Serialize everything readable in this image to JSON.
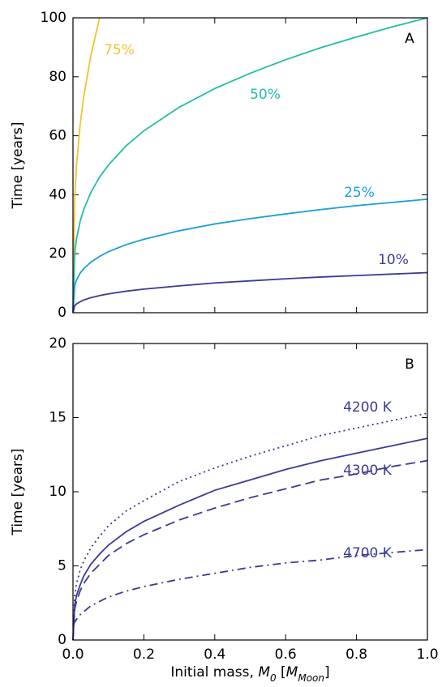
{
  "chart_data": [
    {
      "type": "line",
      "annotation": "A",
      "x": [
        0,
        0.005,
        0.01,
        0.02,
        0.03,
        0.05,
        0.075,
        0.1,
        0.15,
        0.2,
        0.3,
        0.4,
        0.5,
        0.6,
        0.7,
        0.8,
        0.9,
        1.0
      ],
      "series": [
        {
          "name": "75%",
          "color": "#f2c230",
          "linestyle": "solid",
          "values": [
            0,
            39.5,
            50,
            63.5,
            73,
            87,
            100,
            null,
            null,
            null,
            null,
            null,
            null,
            null,
            null,
            null,
            null,
            null
          ]
        },
        {
          "name": "50%",
          "color": "#1fbfa6",
          "linestyle": "solid",
          "values": [
            0,
            20.4,
            25.1,
            30.9,
            34.9,
            40.7,
            46.0,
            50.1,
            56.6,
            61.7,
            69.7,
            76.0,
            81.2,
            85.8,
            89.9,
            93.5,
            96.9,
            100
          ]
        },
        {
          "name": "25%",
          "color": "#1a9fd8",
          "linestyle": "solid",
          "values": [
            0,
            9.2,
            11.1,
            13.4,
            14.9,
            17.1,
            19.1,
            20.7,
            23.1,
            24.9,
            27.8,
            30.1,
            31.9,
            33.5,
            35.0,
            36.3,
            37.4,
            38.5
          ]
        },
        {
          "name": "10%",
          "color": "#3b3b96",
          "linestyle": "solid",
          "values": [
            0,
            2.4,
            3.0,
            3.7,
            4.3,
            5.1,
            5.8,
            6.4,
            7.3,
            8.0,
            9.1,
            10.1,
            10.8,
            11.5,
            12.1,
            12.6,
            13.1,
            13.6
          ]
        }
      ],
      "ylabel": "Time [years]",
      "xlim": [
        0,
        1.0
      ],
      "xticks": [
        0,
        0.2,
        0.4,
        0.6,
        0.8,
        1.0
      ],
      "ylim": [
        0,
        100
      ],
      "yticks": [
        0,
        20,
        40,
        60,
        80,
        100
      ]
    },
    {
      "type": "line",
      "annotation": "B",
      "x": [
        0,
        0.005,
        0.01,
        0.02,
        0.03,
        0.05,
        0.075,
        0.1,
        0.15,
        0.2,
        0.3,
        0.4,
        0.5,
        0.6,
        0.7,
        0.8,
        0.9,
        1.0
      ],
      "series": [
        {
          "name": "4200 K",
          "color": "#3b3b96",
          "linestyle": "dotted",
          "values": [
            0,
            3.1,
            3.8,
            4.7,
            5.3,
            6.2,
            7.0,
            7.7,
            8.7,
            9.4,
            10.7,
            11.6,
            12.4,
            13.1,
            13.8,
            14.3,
            14.8,
            15.3
          ]
        },
        {
          "color": "#3b3b96",
          "linestyle": "solid",
          "values": [
            0,
            2.4,
            3.0,
            3.7,
            4.3,
            5.1,
            5.8,
            6.4,
            7.3,
            8.0,
            9.1,
            10.1,
            10.8,
            11.5,
            12.1,
            12.6,
            13.1,
            13.6
          ]
        },
        {
          "name": "4300 K",
          "color": "#3b3b96",
          "linestyle": "dashed",
          "values": [
            0,
            2.1,
            2.6,
            3.3,
            3.8,
            4.5,
            5.1,
            5.7,
            6.5,
            7.1,
            8.1,
            8.9,
            9.6,
            10.2,
            10.8,
            11.2,
            11.7,
            12.1
          ]
        },
        {
          "name": "4700 K",
          "color": "#3b3b96",
          "linestyle": "dashdot",
          "values": [
            1.0,
            1.2,
            1.4,
            1.7,
            1.9,
            2.3,
            2.6,
            2.9,
            3.3,
            3.6,
            4.1,
            4.5,
            4.9,
            5.2,
            5.4,
            5.7,
            5.9,
            6.1
          ]
        }
      ],
      "ylabel": "Time [years]",
      "xlabel": [
        "Initial mass, ",
        "M",
        "0",
        " [",
        "M",
        "Moon",
        "]"
      ],
      "xlim": [
        0,
        1.0
      ],
      "xticks": [
        {
          "value": 0,
          "label": "0.0"
        },
        {
          "value": 0.2,
          "label": "0.2"
        },
        {
          "value": 0.4,
          "label": "0.4"
        },
        {
          "value": 0.6,
          "label": "0.6"
        },
        {
          "value": 0.8,
          "label": "0.8"
        },
        {
          "value": 1.0,
          "label": "1.0"
        }
      ],
      "ylim": [
        0,
        20
      ],
      "yticks": [
        0,
        5,
        10,
        15,
        20
      ]
    }
  ]
}
